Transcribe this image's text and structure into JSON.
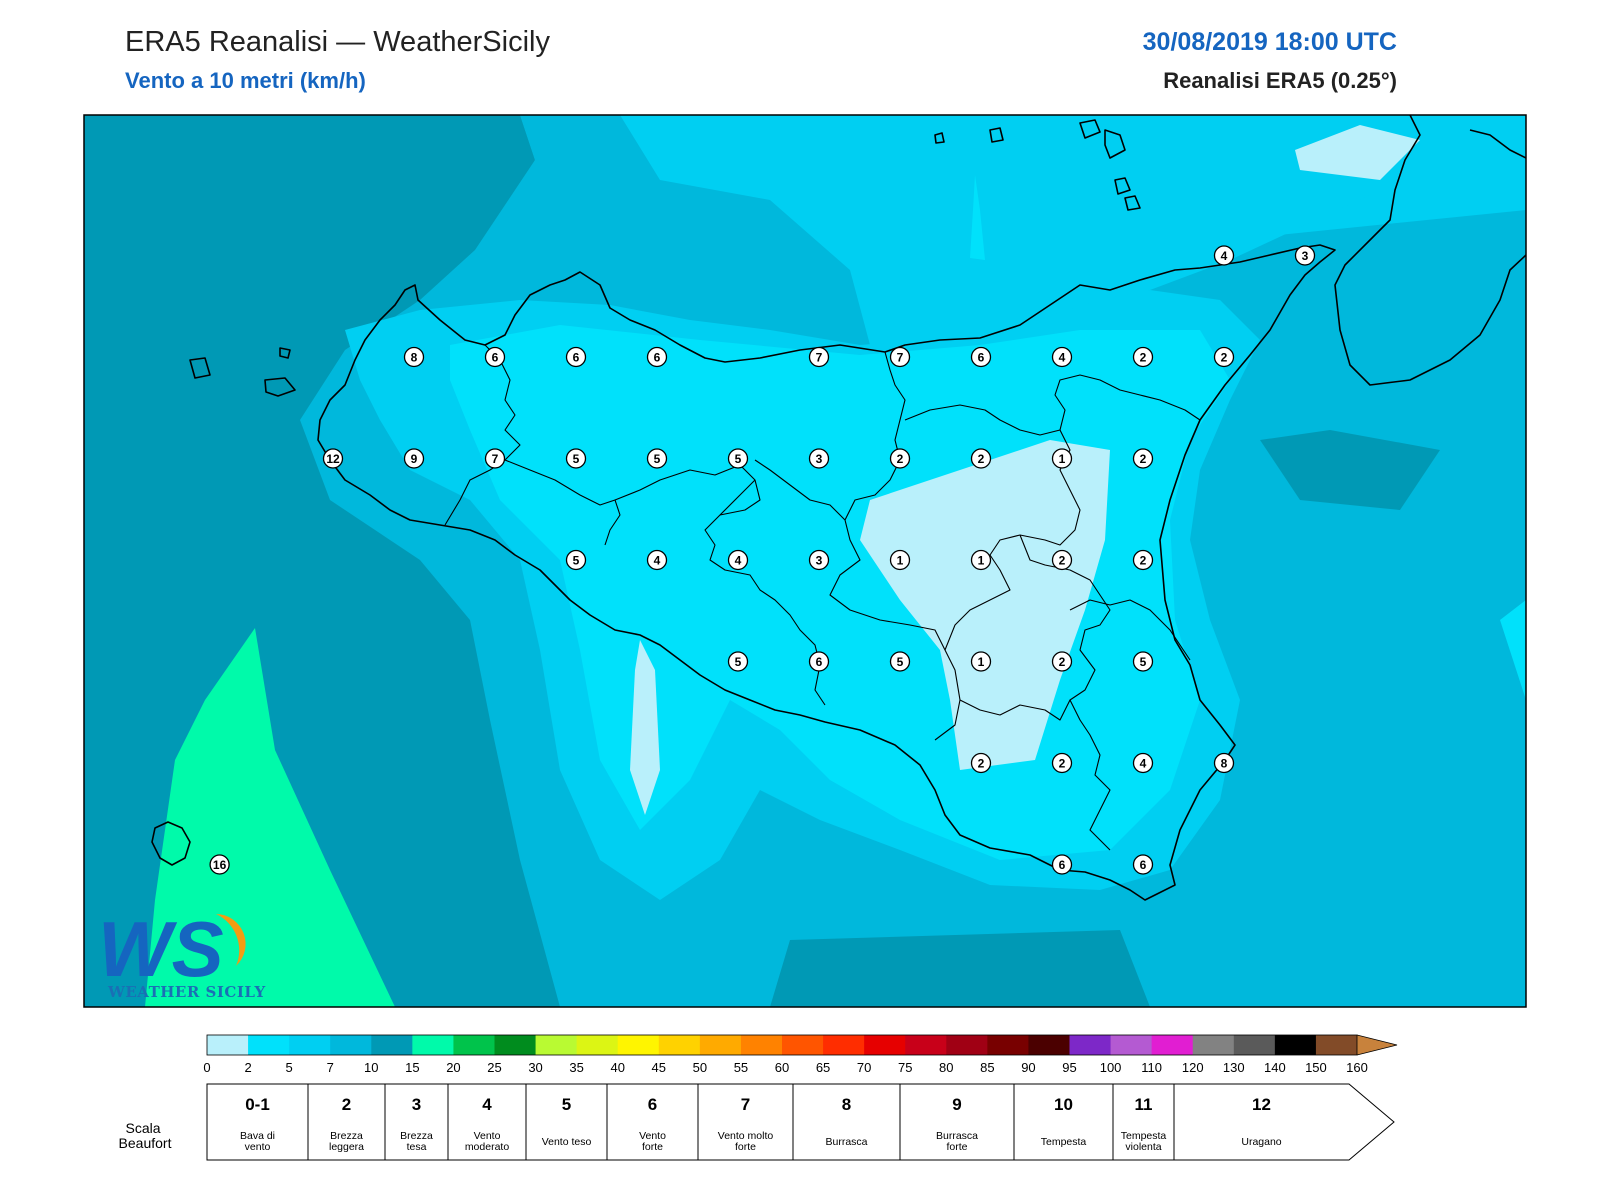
{
  "header": {
    "title": "ERA5 Reanalisi — WeatherSicily",
    "subtitle": "Vento a 10 metri (km/h)",
    "datetime": "30/08/2019 18:00 UTC",
    "source": "Reanalisi ERA5 (0.25°)"
  },
  "logo": {
    "mark": "WS",
    "text": "WEATHER SICILY",
    "colors": {
      "blue": "#1565c0",
      "orange": "#f39c12"
    }
  },
  "wind_markers": [
    {
      "lon": 12.5,
      "lat": 38.25,
      "value": "8"
    },
    {
      "lon": 13.0,
      "lat": 38.25,
      "value": "6"
    },
    {
      "lon": 13.5,
      "lat": 38.25,
      "value": "6"
    },
    {
      "lon": 14.0,
      "lat": 38.25,
      "value": "6"
    },
    {
      "lon": 15.0,
      "lat": 38.25,
      "value": "7"
    },
    {
      "lon": 15.5,
      "lat": 38.25,
      "value": "7"
    },
    {
      "lon": 16.0,
      "lat": 38.25,
      "value": "6"
    },
    {
      "lon": 16.5,
      "lat": 38.25,
      "value": "4"
    },
    {
      "lon": 17.0,
      "lat": 38.25,
      "value": "2"
    },
    {
      "lon": 17.5,
      "lat": 38.25,
      "value": "2"
    },
    {
      "lon": 17.5,
      "lat": 38.75,
      "value": "4"
    },
    {
      "lon": 18.0,
      "lat": 38.75,
      "value": "3"
    },
    {
      "lon": 12.0,
      "lat": 37.75,
      "value": "12"
    },
    {
      "lon": 12.5,
      "lat": 37.75,
      "value": "9"
    },
    {
      "lon": 13.0,
      "lat": 37.75,
      "value": "7"
    },
    {
      "lon": 13.5,
      "lat": 37.75,
      "value": "5"
    },
    {
      "lon": 14.0,
      "lat": 37.75,
      "value": "5"
    },
    {
      "lon": 14.5,
      "lat": 37.75,
      "value": "5"
    },
    {
      "lon": 15.0,
      "lat": 37.75,
      "value": "3"
    },
    {
      "lon": 15.5,
      "lat": 37.75,
      "value": "2"
    },
    {
      "lon": 16.0,
      "lat": 37.75,
      "value": "2"
    },
    {
      "lon": 16.5,
      "lat": 37.75,
      "value": "1"
    },
    {
      "lon": 17.0,
      "lat": 37.75,
      "value": "2"
    },
    {
      "lon": 13.5,
      "lat": 37.25,
      "value": "5"
    },
    {
      "lon": 14.0,
      "lat": 37.25,
      "value": "4"
    },
    {
      "lon": 14.5,
      "lat": 37.25,
      "value": "4"
    },
    {
      "lon": 15.0,
      "lat": 37.25,
      "value": "3"
    },
    {
      "lon": 15.5,
      "lat": 37.25,
      "value": "1"
    },
    {
      "lon": 16.0,
      "lat": 37.25,
      "value": "1"
    },
    {
      "lon": 16.5,
      "lat": 37.25,
      "value": "2"
    },
    {
      "lon": 17.0,
      "lat": 37.25,
      "value": "2"
    },
    {
      "lon": 14.5,
      "lat": 36.75,
      "value": "5"
    },
    {
      "lon": 15.0,
      "lat": 36.75,
      "value": "6"
    },
    {
      "lon": 15.5,
      "lat": 36.75,
      "value": "5"
    },
    {
      "lon": 16.0,
      "lat": 36.75,
      "value": "1"
    },
    {
      "lon": 16.5,
      "lat": 36.75,
      "value": "2"
    },
    {
      "lon": 17.0,
      "lat": 36.75,
      "value": "5"
    },
    {
      "lon": 16.0,
      "lat": 36.25,
      "value": "2"
    },
    {
      "lon": 16.5,
      "lat": 36.25,
      "value": "2"
    },
    {
      "lon": 17.0,
      "lat": 36.25,
      "value": "4"
    },
    {
      "lon": 17.5,
      "lat": 36.25,
      "value": "8"
    },
    {
      "lon": 16.5,
      "lat": 35.75,
      "value": "6"
    },
    {
      "lon": 17.0,
      "lat": 35.75,
      "value": "6"
    },
    {
      "lon": 11.3,
      "lat": 35.75,
      "value": "16"
    }
  ],
  "colorbar": {
    "ticks": [
      "0",
      "2",
      "5",
      "7",
      "10",
      "15",
      "20",
      "25",
      "30",
      "35",
      "40",
      "45",
      "50",
      "55",
      "60",
      "65",
      "70",
      "75",
      "80",
      "85",
      "90",
      "95",
      "100",
      "110",
      "120",
      "130",
      "140",
      "150",
      "160"
    ],
    "colors": [
      "#b9f0fb",
      "#00e1fb",
      "#00cff2",
      "#00b8dc",
      "#0099b5",
      "#00faaa",
      "#00c34b",
      "#008c1e",
      "#b9fa32",
      "#dcf514",
      "#fff500",
      "#ffd200",
      "#ffaa00",
      "#ff8200",
      "#ff5500",
      "#ff2d00",
      "#e60000",
      "#c80019",
      "#a00014",
      "#780000",
      "#4b0000",
      "#7d28c8",
      "#b45ad2",
      "#e11ed2",
      "#828282",
      "#5a5a5a",
      "#000000",
      "#824b28",
      "#c8823c"
    ]
  },
  "beaufort": {
    "label": "Scala Beaufort",
    "levels": [
      {
        "num": "0-1",
        "desc": [
          "Bava di",
          "vento"
        ]
      },
      {
        "num": "2",
        "desc": [
          "Brezza",
          "leggera"
        ]
      },
      {
        "num": "3",
        "desc": [
          "Brezza",
          "tesa"
        ]
      },
      {
        "num": "4",
        "desc": [
          "Vento",
          "moderato"
        ]
      },
      {
        "num": "5",
        "desc": [
          "Vento teso"
        ]
      },
      {
        "num": "6",
        "desc": [
          "Vento",
          "forte"
        ]
      },
      {
        "num": "7",
        "desc": [
          "Vento molto",
          "forte"
        ]
      },
      {
        "num": "8",
        "desc": [
          "Burrasca"
        ]
      },
      {
        "num": "9",
        "desc": [
          "Burrasca",
          "forte"
        ]
      },
      {
        "num": "10",
        "desc": [
          "Tempesta"
        ]
      },
      {
        "num": "11",
        "desc": [
          "Tempesta",
          "violenta"
        ]
      },
      {
        "num": "12",
        "desc": [
          "Uragano"
        ]
      }
    ]
  }
}
